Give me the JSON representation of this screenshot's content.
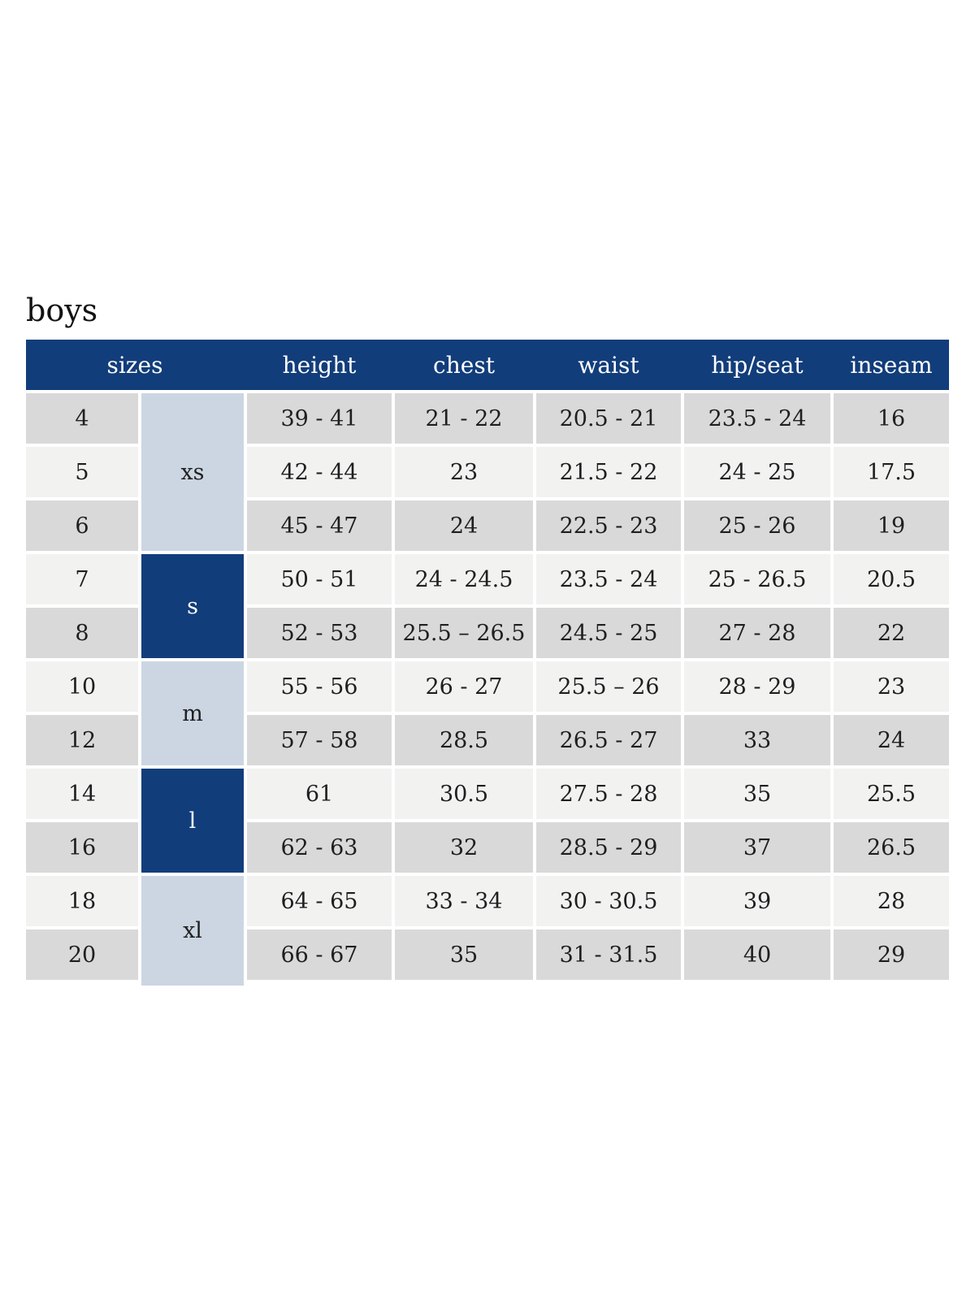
{
  "page": {
    "title": "boys"
  },
  "table": {
    "headers": [
      "sizes",
      "height",
      "chest",
      "waist",
      "hip/seat",
      "inseam"
    ],
    "size_groups": [
      {
        "label": "xs",
        "style": "light",
        "covers_sizes": [
          "4",
          "5",
          "6"
        ]
      },
      {
        "label": "s",
        "style": "dark",
        "covers_sizes": [
          "7",
          "8"
        ]
      },
      {
        "label": "m",
        "style": "light",
        "covers_sizes": [
          "10",
          "12"
        ]
      },
      {
        "label": "l",
        "style": "dark",
        "covers_sizes": [
          "14",
          "16"
        ]
      },
      {
        "label": "xl",
        "style": "light",
        "covers_sizes": [
          "18",
          "20"
        ]
      }
    ],
    "rows": [
      {
        "size": "4",
        "height": "39 - 41",
        "chest": "21 - 22",
        "waist": "20.5 - 21",
        "hip_seat": "23.5 - 24",
        "inseam": "16"
      },
      {
        "size": "5",
        "height": "42 - 44",
        "chest": "23",
        "waist": "21.5 - 22",
        "hip_seat": "24 - 25",
        "inseam": "17.5"
      },
      {
        "size": "6",
        "height": "45 - 47",
        "chest": "24",
        "waist": "22.5 - 23",
        "hip_seat": "25 - 26",
        "inseam": "19"
      },
      {
        "size": "7",
        "height": "50 - 51",
        "chest": "24 - 24.5",
        "waist": "23.5 - 24",
        "hip_seat": "25 - 26.5",
        "inseam": "20.5"
      },
      {
        "size": "8",
        "height": "52 - 53",
        "chest": "25.5 – 26.5",
        "waist": "24.5 - 25",
        "hip_seat": "27 - 28",
        "inseam": "22"
      },
      {
        "size": "10",
        "height": "55 - 56",
        "chest": "26 - 27",
        "waist": "25.5 – 26",
        "hip_seat": "28 - 29",
        "inseam": "23"
      },
      {
        "size": "12",
        "height": "57 - 58",
        "chest": "28.5",
        "waist": "26.5 - 27",
        "hip_seat": "33",
        "inseam": "24"
      },
      {
        "size": "14",
        "height": "61",
        "chest": "30.5",
        "waist": "27.5 - 28",
        "hip_seat": "35",
        "inseam": "25.5"
      },
      {
        "size": "16",
        "height": "62 - 63",
        "chest": "32",
        "waist": "28.5 - 29",
        "hip_seat": "37",
        "inseam": "26.5"
      },
      {
        "size": "18",
        "height": "64 - 65",
        "chest": "33 - 34",
        "waist": "30 - 30.5",
        "hip_seat": "39",
        "inseam": "28"
      },
      {
        "size": "20",
        "height": "66 - 67",
        "chest": "35",
        "waist": "31 - 31.5",
        "hip_seat": "40",
        "inseam": "29"
      }
    ],
    "colors": {
      "header_bg": "#123d7b",
      "header_text": "#ffffff",
      "group_dark_bg": "#123d7b",
      "group_dark_text": "#ffffff",
      "group_light_bg": "#ccd6e3",
      "row_gray_bg": "#d9d9d9",
      "row_light_bg": "#f2f2f1",
      "body_text": "#1f1f1f"
    }
  }
}
